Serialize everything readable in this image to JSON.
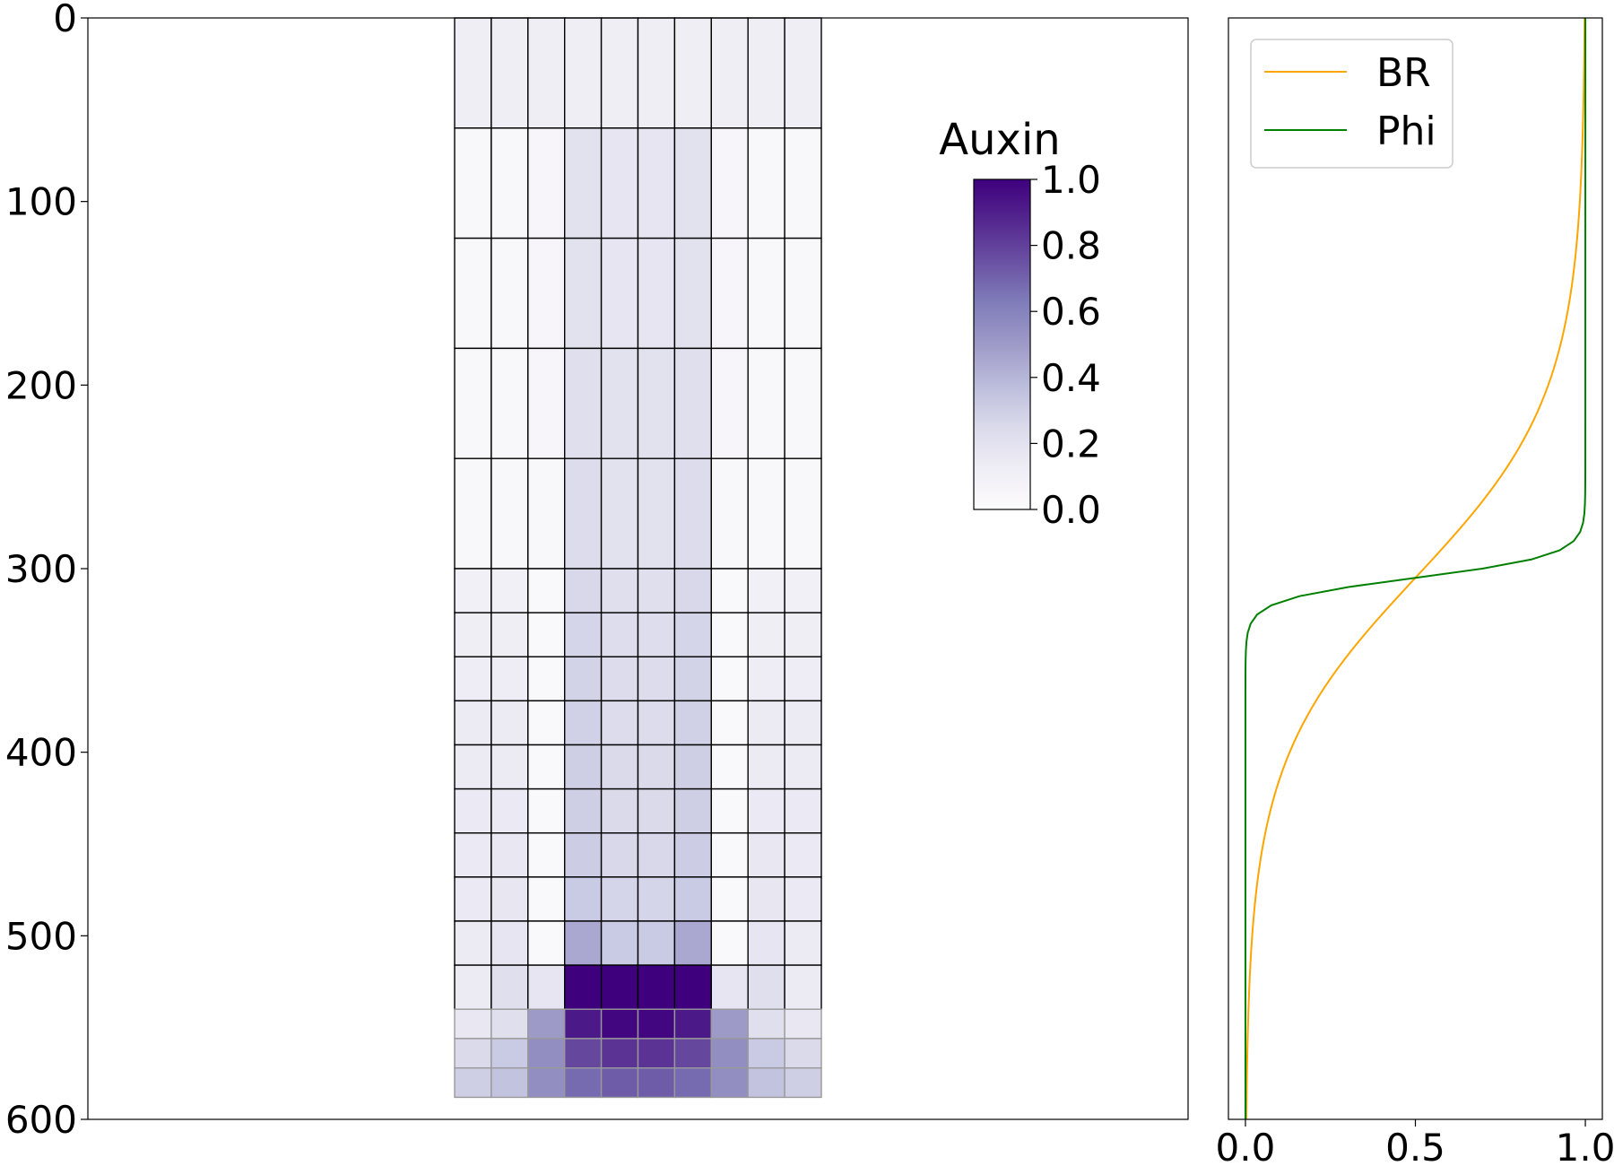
{
  "chart_data": [
    {
      "type": "heatmap",
      "ylim": [
        600,
        0
      ],
      "yticks": [
        0,
        100,
        200,
        300,
        400,
        500,
        600
      ],
      "ytick_labels": [
        "0",
        "100",
        "200",
        "300",
        "400",
        "500",
        "600"
      ],
      "xlim": [
        0,
        600
      ],
      "colormap": "Purples",
      "colorbar": {
        "title": "Auxin",
        "range": [
          0,
          1
        ],
        "ticks": [
          0.0,
          0.2,
          0.4,
          0.6,
          0.8,
          1.0
        ],
        "tick_labels": [
          "0.0",
          "0.2",
          "0.4",
          "0.6",
          "0.8",
          "1.0"
        ]
      },
      "columns_x": [
        200,
        220,
        240,
        260,
        280,
        300,
        320,
        340,
        360,
        380,
        400
      ],
      "grid_color_lower": "#999999",
      "grid_color_upper": "#000000",
      "rows": [
        {
          "y0": 0,
          "y1": 60,
          "values": [
            0.12,
            0.12,
            0.12,
            0.12,
            0.12,
            0.12,
            0.12,
            0.12,
            0.12,
            0.12
          ]
        },
        {
          "y0": 60,
          "y1": 120,
          "values": [
            0.04,
            0.04,
            0.05,
            0.2,
            0.18,
            0.18,
            0.2,
            0.05,
            0.04,
            0.04
          ]
        },
        {
          "y0": 120,
          "y1": 180,
          "values": [
            0.04,
            0.04,
            0.05,
            0.2,
            0.18,
            0.18,
            0.2,
            0.05,
            0.04,
            0.04
          ]
        },
        {
          "y0": 180,
          "y1": 240,
          "values": [
            0.04,
            0.04,
            0.05,
            0.22,
            0.2,
            0.2,
            0.22,
            0.05,
            0.04,
            0.04
          ]
        },
        {
          "y0": 240,
          "y1": 300,
          "values": [
            0.04,
            0.04,
            0.04,
            0.24,
            0.2,
            0.2,
            0.24,
            0.04,
            0.04,
            0.04
          ]
        },
        {
          "y0": 300,
          "y1": 324,
          "values": [
            0.1,
            0.1,
            0.03,
            0.26,
            0.22,
            0.22,
            0.26,
            0.03,
            0.1,
            0.1
          ]
        },
        {
          "y0": 324,
          "y1": 348,
          "values": [
            0.12,
            0.12,
            0.03,
            0.27,
            0.23,
            0.23,
            0.27,
            0.03,
            0.12,
            0.12
          ]
        },
        {
          "y0": 348,
          "y1": 372,
          "values": [
            0.13,
            0.13,
            0.03,
            0.28,
            0.24,
            0.24,
            0.28,
            0.03,
            0.13,
            0.13
          ]
        },
        {
          "y0": 372,
          "y1": 396,
          "values": [
            0.14,
            0.14,
            0.03,
            0.29,
            0.24,
            0.24,
            0.29,
            0.03,
            0.14,
            0.14
          ]
        },
        {
          "y0": 396,
          "y1": 420,
          "values": [
            0.14,
            0.14,
            0.03,
            0.3,
            0.25,
            0.25,
            0.3,
            0.03,
            0.14,
            0.14
          ]
        },
        {
          "y0": 420,
          "y1": 444,
          "values": [
            0.15,
            0.15,
            0.03,
            0.3,
            0.25,
            0.25,
            0.3,
            0.03,
            0.15,
            0.15
          ]
        },
        {
          "y0": 444,
          "y1": 468,
          "values": [
            0.15,
            0.16,
            0.03,
            0.31,
            0.26,
            0.26,
            0.31,
            0.03,
            0.16,
            0.15
          ]
        },
        {
          "y0": 468,
          "y1": 492,
          "values": [
            0.15,
            0.17,
            0.03,
            0.32,
            0.27,
            0.27,
            0.32,
            0.03,
            0.17,
            0.15
          ]
        },
        {
          "y0": 492,
          "y1": 516,
          "values": [
            0.14,
            0.18,
            0.03,
            0.45,
            0.32,
            0.32,
            0.45,
            0.03,
            0.18,
            0.14
          ]
        },
        {
          "y0": 516,
          "y1": 540,
          "values": [
            0.14,
            0.22,
            0.18,
            1.0,
            1.0,
            1.0,
            1.0,
            0.18,
            0.22,
            0.14
          ]
        },
        {
          "y0": 540,
          "y1": 556,
          "values": [
            0.16,
            0.22,
            0.5,
            0.92,
            0.98,
            0.98,
            0.92,
            0.5,
            0.22,
            0.16
          ]
        },
        {
          "y0": 556,
          "y1": 572,
          "values": [
            0.25,
            0.32,
            0.55,
            0.78,
            0.84,
            0.84,
            0.78,
            0.55,
            0.32,
            0.25
          ]
        },
        {
          "y0": 572,
          "y1": 588,
          "values": [
            0.3,
            0.35,
            0.55,
            0.68,
            0.72,
            0.72,
            0.68,
            0.55,
            0.35,
            0.3
          ]
        }
      ]
    },
    {
      "type": "line",
      "xlim": [
        -0.05,
        1.05
      ],
      "ylim": [
        600,
        0
      ],
      "xticks": [
        0.0,
        0.5,
        1.0
      ],
      "xtick_labels": [
        "0.0",
        "0.5",
        "1.0"
      ],
      "legend_position": "top-left",
      "series": [
        {
          "name": "BR",
          "color": "#ffa500",
          "type": "sigmoid",
          "center": 305,
          "width": 50,
          "points": 120
        },
        {
          "name": "Phi",
          "color": "#008000",
          "type": "sigmoid",
          "center": 305,
          "width": 6,
          "points": 120
        }
      ]
    }
  ]
}
